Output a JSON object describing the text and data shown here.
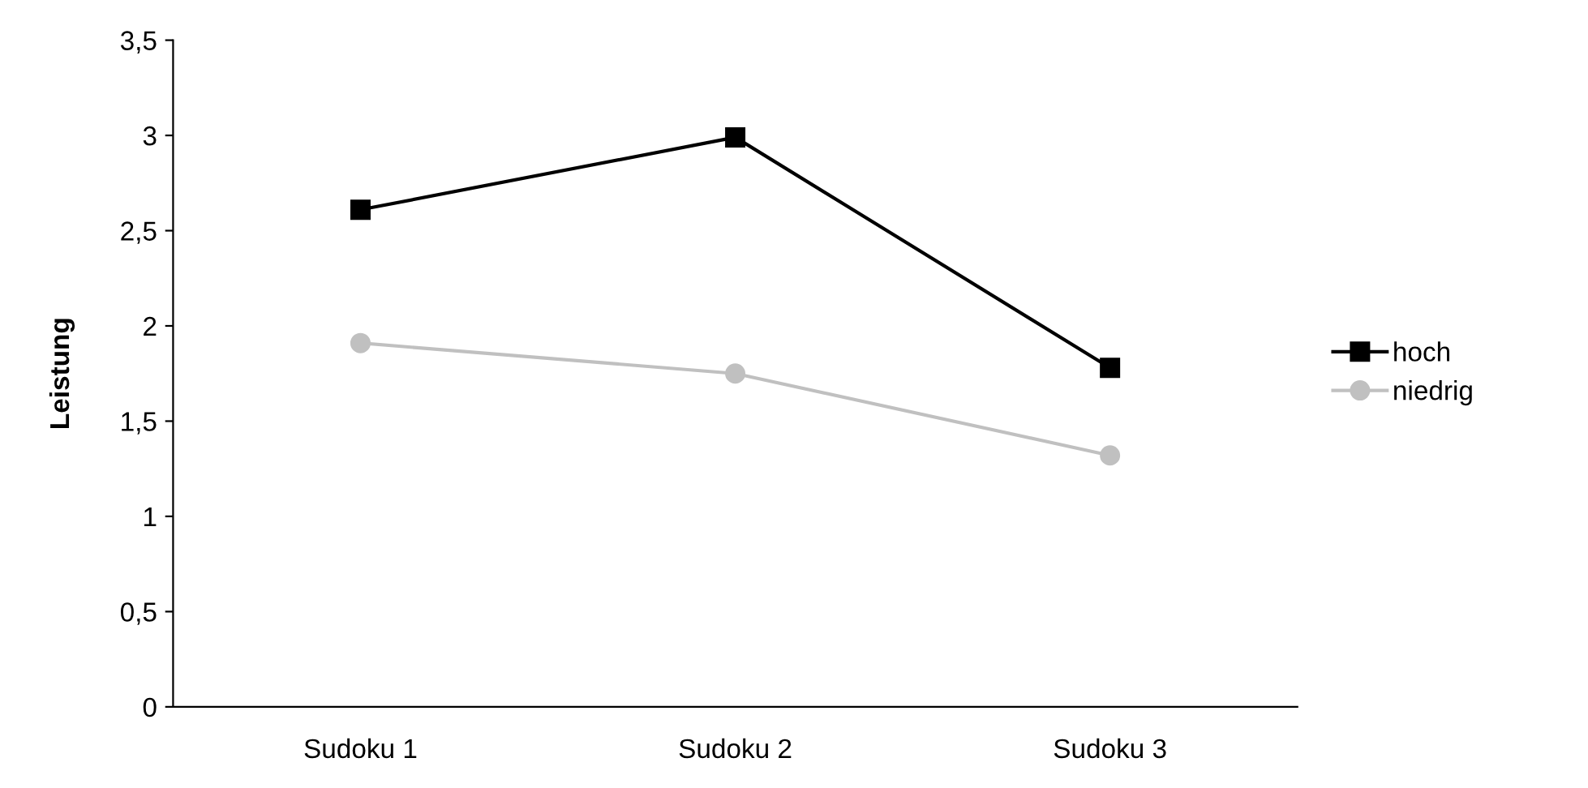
{
  "chart_data": {
    "type": "line",
    "ylabel": "Leistung",
    "categories": [
      "Sudoku 1",
      "Sudoku 2",
      "Sudoku 3"
    ],
    "series": [
      {
        "name": "hoch",
        "color": "#000000",
        "marker": "square",
        "values": [
          2.61,
          2.99,
          1.78
        ]
      },
      {
        "name": "niedrig",
        "color": "#c0c0c0",
        "marker": "circle",
        "values": [
          1.91,
          1.75,
          1.32
        ]
      }
    ],
    "ylim": [
      0,
      3.5
    ],
    "yticks": [
      0,
      {
        "value": 0.5,
        "label": "0,5"
      },
      1,
      {
        "value": 1.5,
        "label": "1,5"
      },
      2,
      {
        "value": 2.5,
        "label": "2,5"
      },
      3,
      {
        "value": 3.5,
        "label": "3,5"
      }
    ],
    "grid": false,
    "legend": "right",
    "line_style": "solid"
  }
}
